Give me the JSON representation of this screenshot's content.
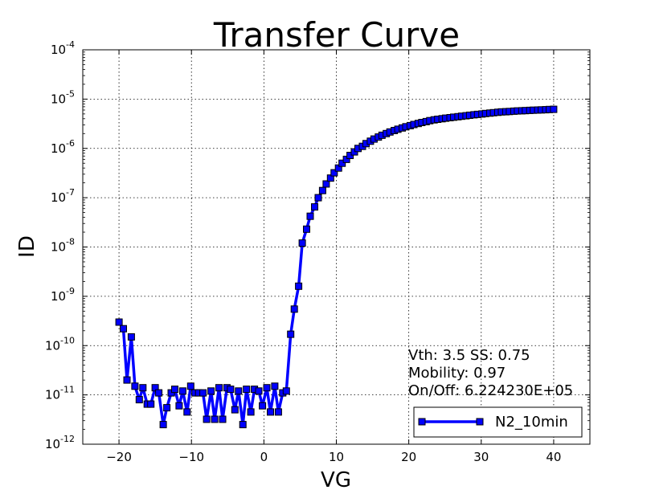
{
  "chart_data": {
    "type": "line",
    "title": "Transfer Curve",
    "xlabel": "VG",
    "ylabel": "ID",
    "xlim": [
      -25,
      45
    ],
    "ylim_exp": [
      -12,
      -4
    ],
    "yscale": "log",
    "grid": true,
    "x_ticks": [
      -20,
      -10,
      0,
      10,
      20,
      30,
      40
    ],
    "x_tick_labels": [
      "−20",
      "−10",
      "0",
      "10",
      "20",
      "30",
      "40"
    ],
    "y_ticks_exp": [
      -12,
      -11,
      -10,
      -9,
      -8,
      -7,
      -6,
      -5,
      -4
    ],
    "y_tick_base": "10",
    "y_tick_exponents": [
      "-12",
      "-11",
      "-10",
      "-9",
      "-8",
      "-7",
      "-6",
      "-5",
      "-4"
    ],
    "annotations": [
      "Vth: 3.5   SS: 0.75",
      "Mobility: 0.97",
      "On/Off: 6.224230E+05"
    ],
    "legend_position": "lower-right",
    "series": [
      {
        "name": "N2_10min",
        "color": "#0000ff",
        "marker": "square",
        "x": [
          -20,
          -19.4,
          -18.9,
          -18.3,
          -17.8,
          -17.2,
          -16.7,
          -16.1,
          -15.6,
          -15,
          -14.5,
          -13.9,
          -13.4,
          -12.8,
          -12.3,
          -11.7,
          -11.2,
          -10.6,
          -10.1,
          -9.5,
          -9,
          -8.4,
          -7.9,
          -7.3,
          -6.8,
          -6.2,
          -5.7,
          -5.1,
          -4.6,
          -4,
          -3.5,
          -2.9,
          -2.4,
          -1.8,
          -1.3,
          -0.7,
          -0.2,
          0.4,
          0.9,
          1.5,
          2,
          2.6,
          3.1,
          3.7,
          4.2,
          4.8,
          5.3,
          5.9,
          6.4,
          7,
          7.5,
          8.1,
          8.6,
          9.2,
          9.7,
          10.3,
          10.8,
          11.4,
          11.9,
          12.5,
          13,
          13.6,
          14.1,
          14.7,
          15.2,
          15.8,
          16.3,
          16.9,
          17.4,
          18,
          18.5,
          19.1,
          19.6,
          20.2,
          20.7,
          21.3,
          21.8,
          22.4,
          22.9,
          23.5,
          24,
          24.6,
          25.1,
          25.7,
          26.2,
          26.8,
          27.3,
          27.9,
          28.4,
          29,
          29.5,
          30.1,
          30.6,
          31.2,
          31.7,
          32.3,
          32.8,
          33.4,
          33.9,
          34.5,
          35,
          35.6,
          36.1,
          36.7,
          37.2,
          37.8,
          38.3,
          38.9,
          39.4,
          40
        ],
        "y": [
          3e-10,
          2.2e-10,
          2e-11,
          1.5e-10,
          1.5e-11,
          8e-12,
          1.4e-11,
          6.5e-12,
          6.5e-12,
          1.4e-11,
          1.1e-11,
          2.5e-12,
          5.5e-12,
          1.1e-11,
          1.3e-11,
          6e-12,
          1.2e-11,
          4.5e-12,
          1.5e-11,
          1.1e-11,
          1.1e-11,
          1.1e-11,
          3.2e-12,
          1.2e-11,
          3.2e-12,
          1.4e-11,
          3.2e-12,
          1.4e-11,
          1.3e-11,
          5e-12,
          1.2e-11,
          2.5e-12,
          1.3e-11,
          4.5e-12,
          1.3e-11,
          1.2e-11,
          6e-12,
          1.4e-11,
          4.5e-12,
          1.5e-11,
          4.5e-12,
          1.1e-11,
          1.2e-11,
          1.7e-10,
          5.5e-10,
          1.6e-09,
          1.2e-08,
          2.3e-08,
          4.2e-08,
          6.5e-08,
          1e-07,
          1.4e-07,
          1.9e-07,
          2.5e-07,
          3.2e-07,
          4e-07,
          5e-07,
          6e-07,
          7.2e-07,
          8.5e-07,
          1e-06,
          1.1e-06,
          1.25e-06,
          1.4e-06,
          1.55e-06,
          1.7e-06,
          1.85e-06,
          2e-06,
          2.15e-06,
          2.3e-06,
          2.45e-06,
          2.6e-06,
          2.75e-06,
          2.9e-06,
          3.05e-06,
          3.2e-06,
          3.35e-06,
          3.5e-06,
          3.65e-06,
          3.8e-06,
          3.9e-06,
          4e-06,
          4.1e-06,
          4.2e-06,
          4.3e-06,
          4.4e-06,
          4.5e-06,
          4.6e-06,
          4.7e-06,
          4.8e-06,
          4.9e-06,
          5e-06,
          5.1e-06,
          5.2e-06,
          5.3e-06,
          5.4e-06,
          5.5e-06,
          5.55e-06,
          5.6e-06,
          5.7e-06,
          5.75e-06,
          5.8e-06,
          5.85e-06,
          5.9e-06,
          5.95e-06,
          6e-06,
          6.05e-06,
          6.1e-06,
          6.15e-06,
          6.2e-06
        ]
      }
    ]
  }
}
